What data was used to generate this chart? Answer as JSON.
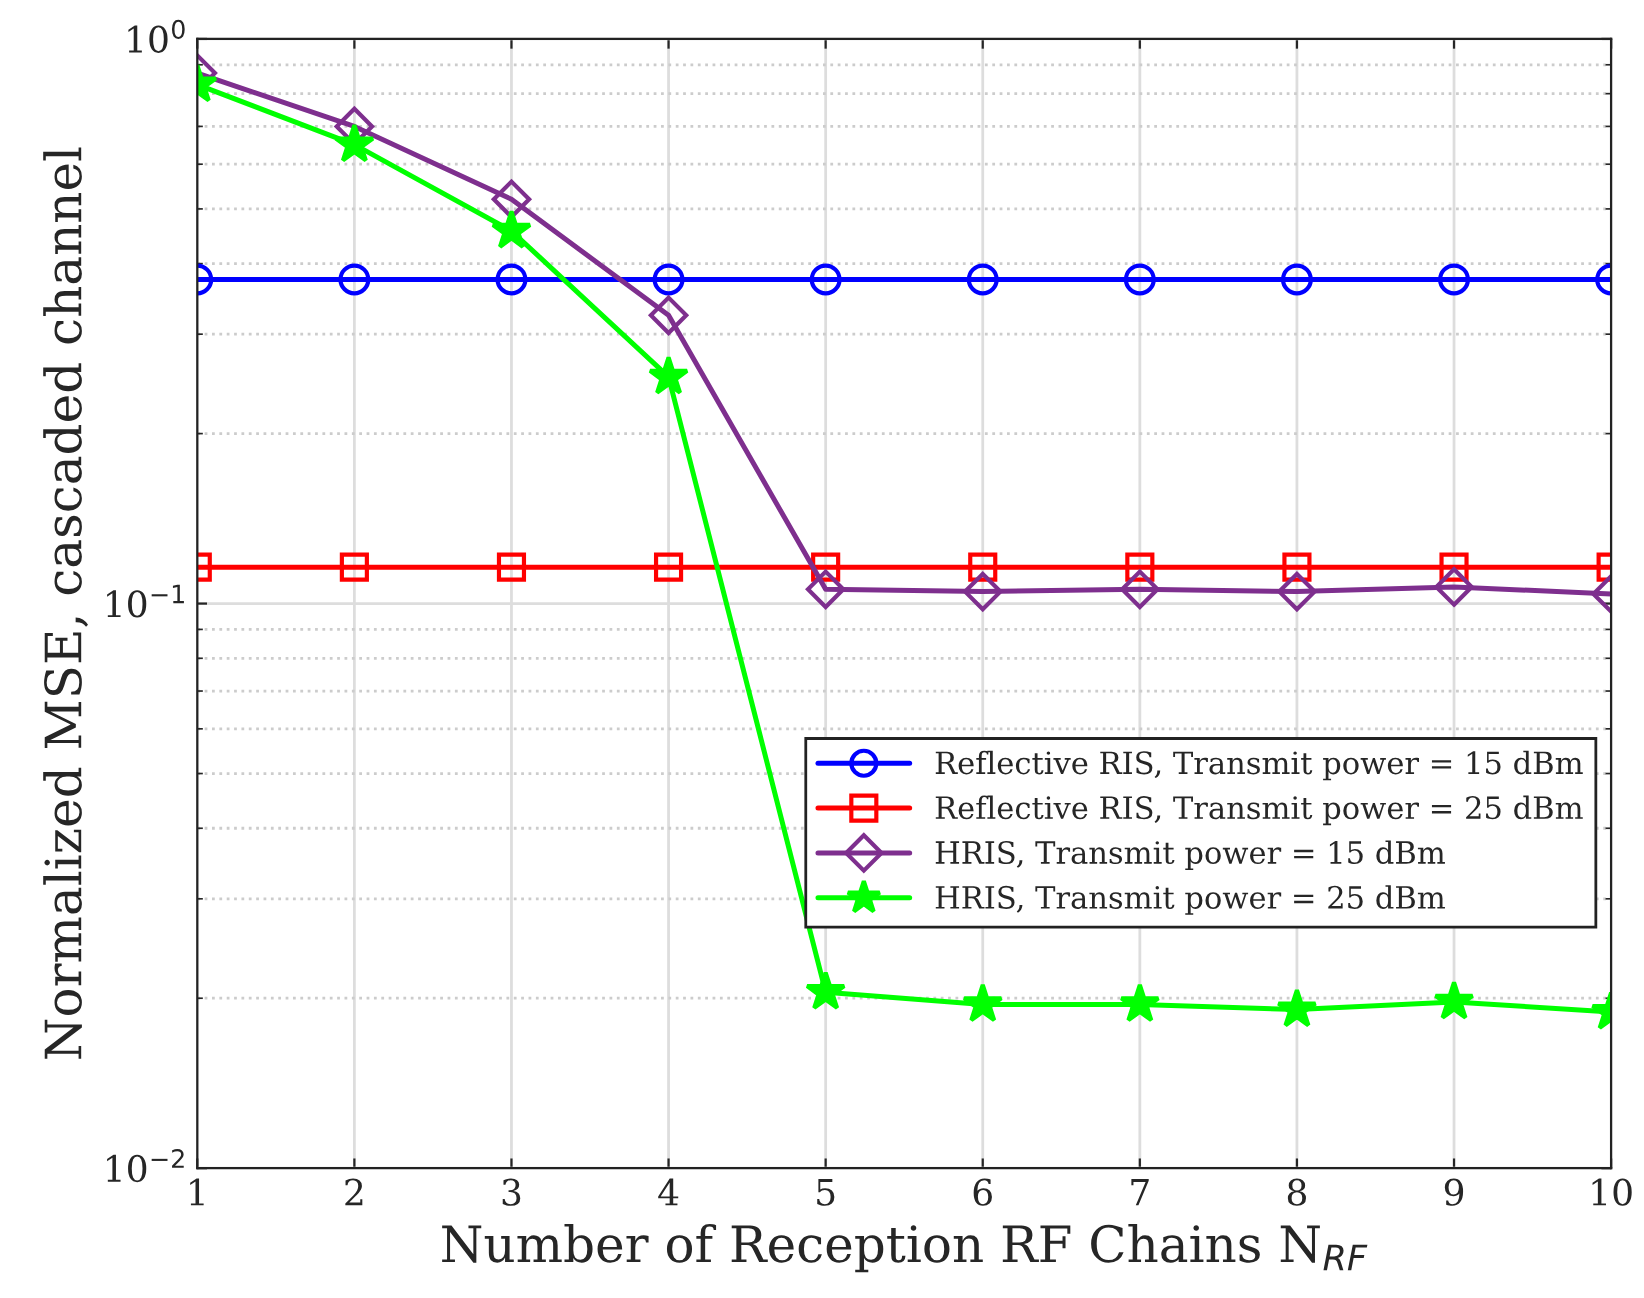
{
  "chart_data": {
    "type": "line",
    "xlabel": "Number of Reception RF Chains N$_{RF}$",
    "ylabel": "Normalized MSE, cascaded channel",
    "x": [
      1,
      2,
      3,
      4,
      5,
      6,
      7,
      8,
      9,
      10
    ],
    "series": [
      {
        "name": "Reflective RIS, Transmit power = 15 dBm",
        "color": "#0000ff",
        "marker": "circle",
        "values": [
          0.375,
          0.375,
          0.375,
          0.375,
          0.375,
          0.375,
          0.375,
          0.375,
          0.375,
          0.375
        ]
      },
      {
        "name": "Reflective RIS, Transmit power = 25 dBm",
        "color": "#ff0000",
        "marker": "square",
        "values": [
          0.116,
          0.116,
          0.116,
          0.116,
          0.116,
          0.116,
          0.116,
          0.116,
          0.116,
          0.116
        ]
      },
      {
        "name": "HRIS, Transmit power = 15 dBm",
        "color": "#7e2f8e",
        "marker": "diamond",
        "values": [
          0.87,
          0.7,
          0.52,
          0.324,
          0.106,
          0.105,
          0.106,
          0.105,
          0.107,
          0.104
        ]
      },
      {
        "name": "HRIS, Transmit power = 25 dBm",
        "color": "#00ff00",
        "marker": "star",
        "values": [
          0.83,
          0.65,
          0.457,
          0.252,
          0.0205,
          0.0195,
          0.0195,
          0.0191,
          0.0197,
          0.0189
        ]
      }
    ],
    "log": "y",
    "xlim": [
      1,
      10
    ],
    "xticks": [
      1,
      2,
      3,
      4,
      5,
      6,
      7,
      8,
      9,
      10
    ],
    "ylim": [
      0.01,
      1
    ],
    "yticks": [
      {
        "value": 0.01,
        "label": "10$^{−2}$"
      },
      {
        "value": 0.1,
        "label": "10$^{−1}$"
      },
      {
        "value": 1,
        "label": "10$^{0}$"
      }
    ],
    "grid": true,
    "legend": "right",
    "line_style": "solid"
  }
}
